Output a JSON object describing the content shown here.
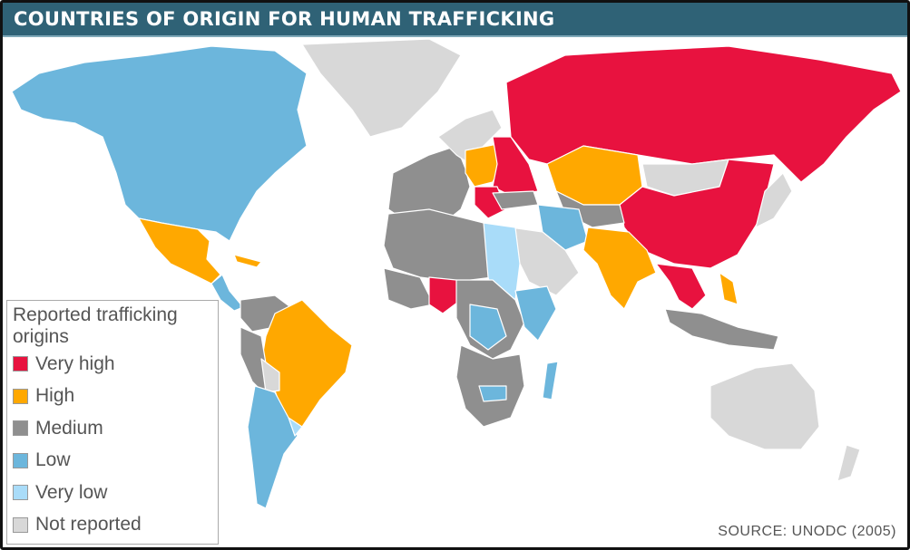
{
  "title": "COUNTRIES OF ORIGIN FOR HUMAN TRAFFICKING",
  "legend": {
    "title": "Reported trafficking origins",
    "items": [
      {
        "label": "Very high",
        "color": "#e8123f"
      },
      {
        "label": "High",
        "color": "#ffa800"
      },
      {
        "label": "Medium",
        "color": "#8f8f8f"
      },
      {
        "label": "Low",
        "color": "#6cb6dc"
      },
      {
        "label": "Very low",
        "color": "#a9dcf9"
      },
      {
        "label": "Not reported",
        "color": "#d8d8d8"
      }
    ]
  },
  "source": "SOURCE: UNODC (2005)"
}
